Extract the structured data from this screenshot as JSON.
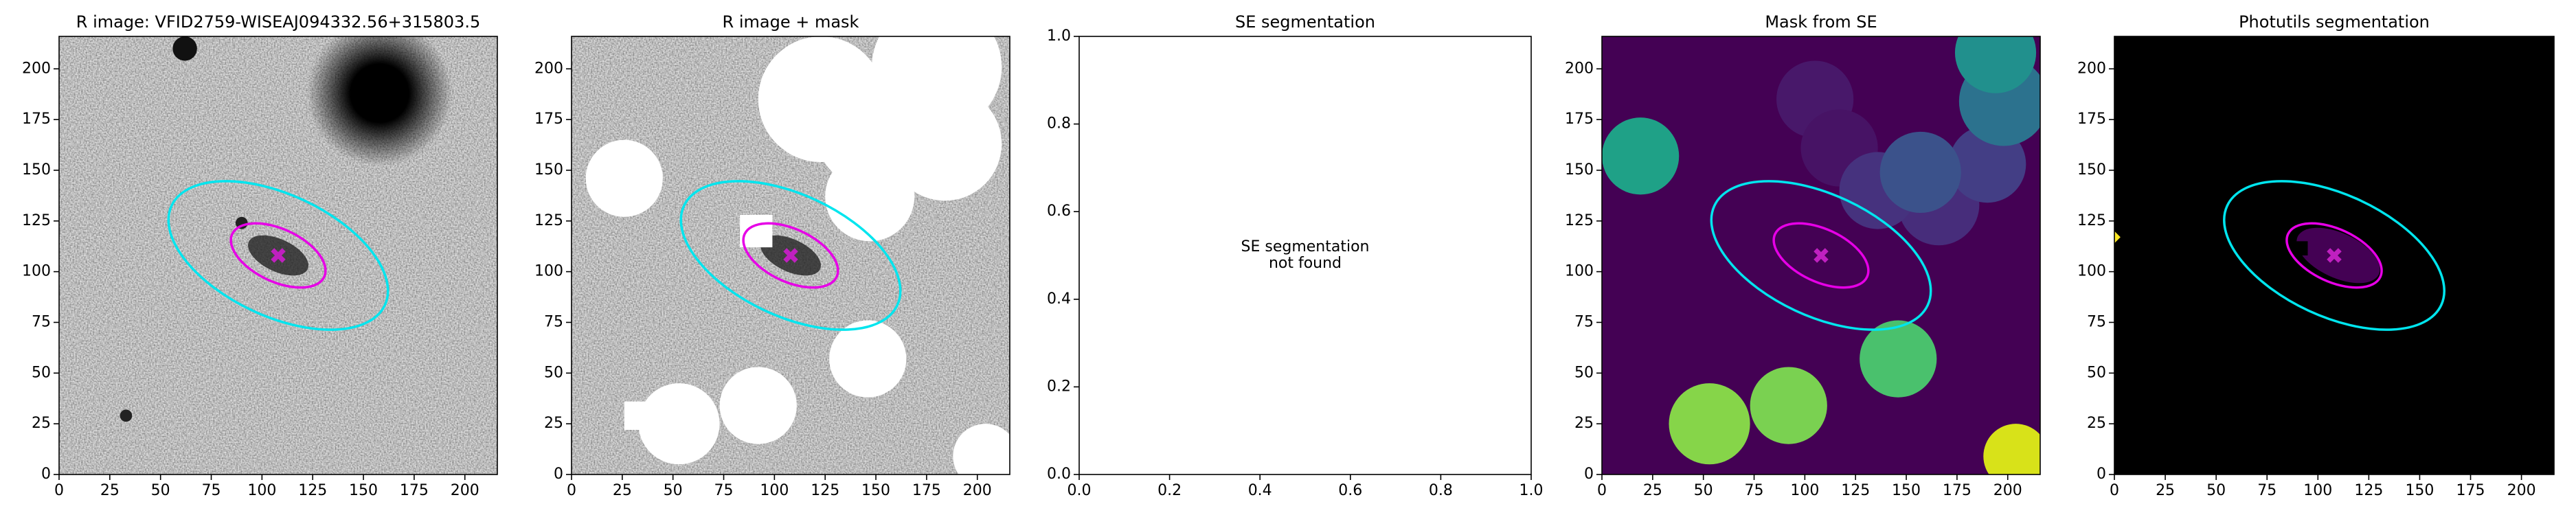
{
  "chart_data": [
    {
      "type": "image",
      "title": "R image: VFID2759-WISEAJ094332.56+315803.5",
      "xlim": [
        0,
        216
      ],
      "ylim": [
        0,
        216
      ],
      "xticks": [
        0,
        25,
        50,
        75,
        100,
        125,
        150,
        175,
        200
      ],
      "yticks": [
        0,
        25,
        50,
        75,
        100,
        125,
        150,
        175,
        200
      ],
      "ellipses": [
        {
          "color": "#00e5ee",
          "center": [
            108,
            108
          ],
          "a": 58,
          "b": 30,
          "angle": -25
        },
        {
          "color": "#e600e6",
          "center": [
            108,
            108
          ],
          "a": 25,
          "b": 13,
          "angle": -25
        }
      ],
      "marker": {
        "color": "#c020c0",
        "x": 108,
        "y": 108
      }
    },
    {
      "type": "image",
      "title": "R image + mask",
      "xlim": [
        0,
        216
      ],
      "ylim": [
        0,
        216
      ],
      "xticks": [
        0,
        25,
        50,
        75,
        100,
        125,
        150,
        175,
        200
      ],
      "yticks": [
        0,
        25,
        50,
        75,
        100,
        125,
        150,
        175,
        200
      ],
      "ellipses": [
        {
          "color": "#00e5ee",
          "center": [
            108,
            108
          ],
          "a": 58,
          "b": 30,
          "angle": -25
        },
        {
          "color": "#e600e6",
          "center": [
            108,
            108
          ],
          "a": 25,
          "b": 13,
          "angle": -25
        }
      ],
      "marker": {
        "color": "#c020c0",
        "x": 108,
        "y": 108
      }
    },
    {
      "type": "empty",
      "title": "SE segmentation",
      "xlim": [
        0,
        1
      ],
      "ylim": [
        0,
        1
      ],
      "xticks": [
        {
          "value": 0,
          "label": "0.0"
        },
        0.2,
        0.4,
        0.6,
        0.8,
        {
          "value": 1,
          "label": "1.0"
        }
      ],
      "yticks": [
        {
          "value": 0,
          "label": "0.0"
        },
        0.2,
        0.4,
        0.6,
        0.8,
        {
          "value": 1,
          "label": "1.0"
        }
      ],
      "annotation": {
        "text": "SE segmentation\nnot found",
        "x": 0.5,
        "y": 0.5
      }
    },
    {
      "type": "image",
      "title": "Mask from SE",
      "xlim": [
        0,
        216
      ],
      "ylim": [
        0,
        216
      ],
      "xticks": [
        0,
        25,
        50,
        75,
        100,
        125,
        150,
        175,
        200
      ],
      "yticks": [
        0,
        25,
        50,
        75,
        100,
        125,
        150,
        175,
        200
      ],
      "ellipses": [
        {
          "color": "#00e5ee",
          "center": [
            108,
            108
          ],
          "a": 58,
          "b": 30,
          "angle": -25
        },
        {
          "color": "#e600e6",
          "center": [
            108,
            108
          ],
          "a": 25,
          "b": 13,
          "angle": -25
        }
      ],
      "marker": {
        "color": "#c020c0",
        "x": 108,
        "y": 108
      }
    },
    {
      "type": "image",
      "title": "Photutils segmentation",
      "xlim": [
        0,
        216
      ],
      "ylim": [
        0,
        216
      ],
      "xticks": [
        0,
        25,
        50,
        75,
        100,
        125,
        150,
        175,
        200
      ],
      "yticks": [
        0,
        25,
        50,
        75,
        100,
        125,
        150,
        175,
        200
      ],
      "ellipses": [
        {
          "color": "#00e5ee",
          "center": [
            108,
            108
          ],
          "a": 58,
          "b": 30,
          "angle": -25
        },
        {
          "color": "#e600e6",
          "center": [
            108,
            108
          ],
          "a": 25,
          "b": 13,
          "angle": -25
        }
      ],
      "marker": {
        "color": "#c020c0",
        "x": 108,
        "y": 108
      }
    }
  ]
}
